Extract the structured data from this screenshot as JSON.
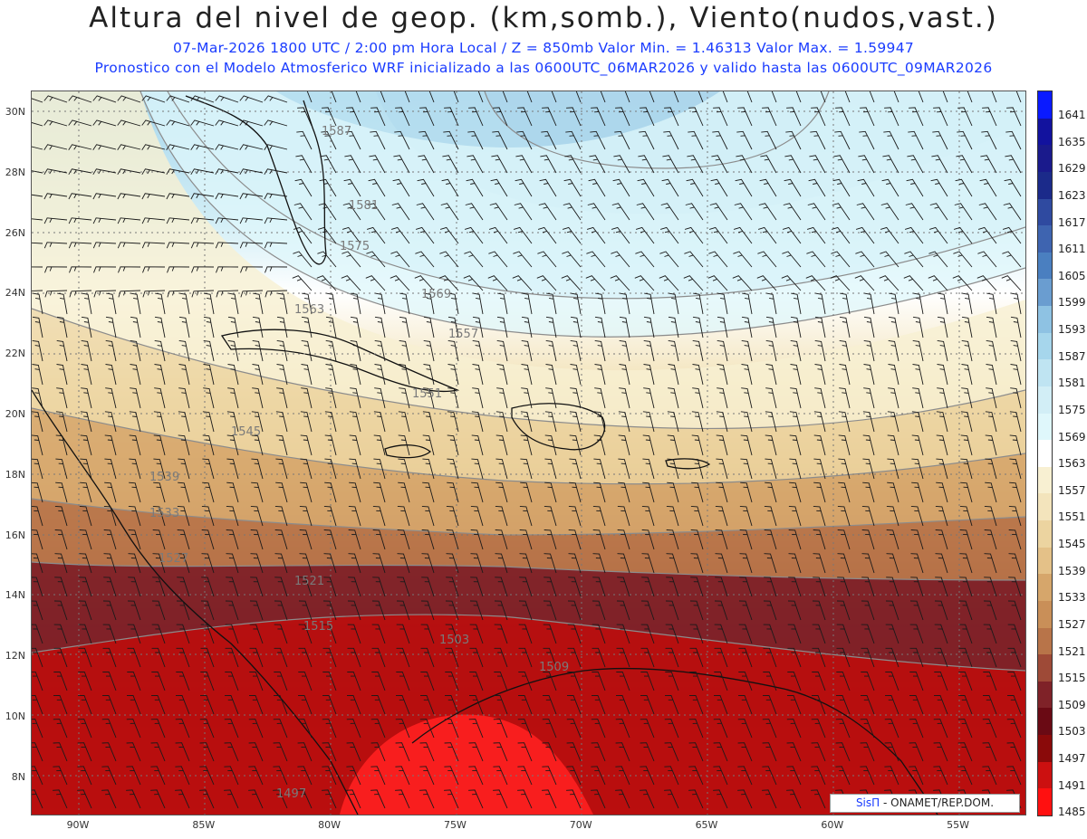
{
  "header": {
    "title": "Altura del nivel de geop. (km,somb.), Viento(nudos,vast.)",
    "subtitle_line1": "07-Mar-2026   1800 UTC / 2:00 pm Hora Local / Z = 850mb     Valor Min. = 1.46313   Valor Max. = 1.59947",
    "subtitle_line2": "Pronostico con el Modelo Atmosferico WRF inicializado a las 0600UTC_06MAR2026 y valido hasta las  0600UTC_09MAR2026"
  },
  "map": {
    "lat_labels": [
      "30N",
      "28N",
      "26N",
      "24N",
      "22N",
      "20N",
      "18N",
      "16N",
      "14N",
      "12N",
      "10N",
      "8N"
    ],
    "lon_labels": [
      "90W",
      "85W",
      "80W",
      "75W",
      "70W",
      "65W",
      "60W",
      "55W"
    ],
    "contour_labels": [
      "1587",
      "1581",
      "1575",
      "1569",
      "1563",
      "1557",
      "1551",
      "1545",
      "1539",
      "1533",
      "1527",
      "1521",
      "1515",
      "1509",
      "1503",
      "1497"
    ]
  },
  "colorbar": {
    "levels": [
      "1641",
      "1635",
      "1629",
      "1623",
      "1617",
      "1611",
      "1605",
      "1599",
      "1593",
      "1587",
      "1581",
      "1575",
      "1569",
      "1563",
      "1557",
      "1551",
      "1545",
      "1539",
      "1533",
      "1527",
      "1521",
      "1515",
      "1509",
      "1503",
      "1497",
      "1491",
      "1485"
    ],
    "colors": [
      "#0a1aff",
      "#12129e",
      "#1a1a8c",
      "#1b2a8a",
      "#2f4aa0",
      "#3e64b0",
      "#4a7fc0",
      "#6a9dd0",
      "#8ec2e3",
      "#a6d6ec",
      "#bfe4f2",
      "#d2eef6",
      "#dff7fb",
      "#ffffff",
      "#f8f0d2",
      "#f3e4bc",
      "#ecd4a0",
      "#e4c188",
      "#d6a66b",
      "#c98f58",
      "#b87449",
      "#9e4a37",
      "#7f2228",
      "#6a0a14",
      "#8a0a0a",
      "#cc1010",
      "#ff1010"
    ]
  },
  "credit": {
    "brand": "SisΠ",
    "text": "- ONAMET/REP.DOM."
  }
}
